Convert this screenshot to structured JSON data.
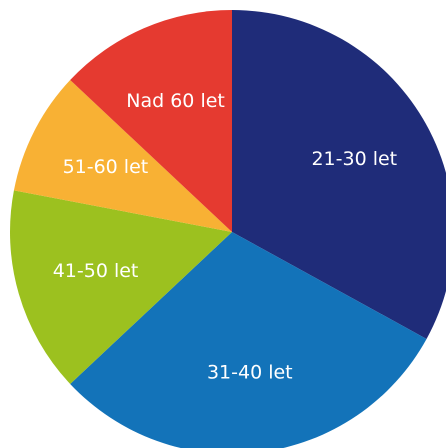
{
  "chart_data": {
    "type": "pie",
    "categories": [
      "21-30 let",
      "31-40 let",
      "41-50 let",
      "51-60 let",
      "Nad 60 let"
    ],
    "values": [
      33,
      30,
      15,
      9,
      13
    ],
    "colors": [
      "#1f2c79",
      "#1373b9",
      "#9cc11f",
      "#f8b134",
      "#e53a30"
    ]
  }
}
